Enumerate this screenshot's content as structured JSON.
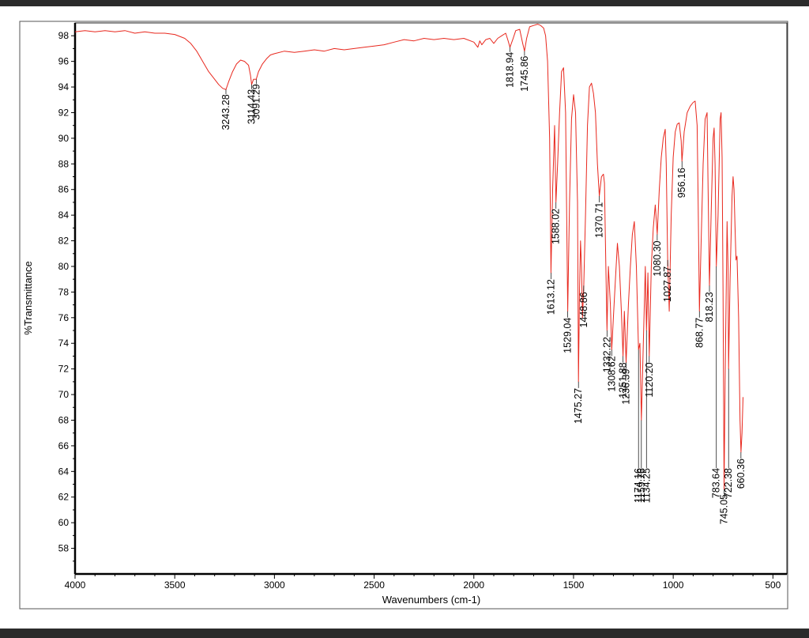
{
  "chart_data": {
    "type": "line",
    "title": "",
    "xlabel": "Wavenumbers (cm-1)",
    "ylabel": "%Transmittance",
    "xlim": [
      4000,
      430
    ],
    "ylim": [
      56,
      99
    ],
    "x_ticks": [
      "4000",
      "3500",
      "3000",
      "2500",
      "2000",
      "1500",
      "1000",
      "500"
    ],
    "y_ticks": [
      "98",
      "96",
      "94",
      "92",
      "90",
      "88",
      "86",
      "84",
      "82",
      "80",
      "78",
      "76",
      "74",
      "72",
      "70",
      "68",
      "66",
      "64",
      "62",
      "60",
      "58"
    ],
    "grid": false,
    "legend": "none",
    "line_color": "#e8281e",
    "series": [
      {
        "x": [
          4000,
          3950,
          3900,
          3850,
          3800,
          3750,
          3700,
          3650,
          3600,
          3550,
          3500,
          3450,
          3420,
          3390,
          3360,
          3330,
          3300,
          3280,
          3260,
          3243.28,
          3230,
          3210,
          3190,
          3170,
          3150,
          3130,
          3120,
          3114.43,
          3105,
          3091.29,
          3080,
          3060,
          3040,
          3020,
          3000,
          2950,
          2900,
          2850,
          2800,
          2750,
          2700,
          2650,
          2600,
          2550,
          2500,
          2450,
          2400,
          2350,
          2300,
          2250,
          2200,
          2150,
          2100,
          2050,
          2000,
          1980,
          1970,
          1960,
          1940,
          1920,
          1900,
          1880,
          1860,
          1840,
          1830,
          1818.94,
          1805,
          1790,
          1770,
          1755,
          1745.86,
          1735,
          1720,
          1700,
          1680,
          1665,
          1650,
          1640,
          1630,
          1620,
          1613.12,
          1605,
          1595,
          1588.02,
          1580,
          1570,
          1560,
          1550,
          1540,
          1535,
          1529.04,
          1520,
          1510,
          1500,
          1490,
          1480,
          1475.27,
          1470,
          1465,
          1460,
          1455,
          1448.86,
          1440,
          1430,
          1420,
          1410,
          1400,
          1390,
          1380,
          1370.71,
          1360,
          1350,
          1345,
          1340,
          1332.22,
          1325,
          1315,
          1308.62,
          1300,
          1290,
          1280,
          1270,
          1260,
          1251.88,
          1245,
          1236.39,
          1225,
          1215,
          1205,
          1195,
          1185,
          1174.16,
          1167,
          1159.76,
          1150,
          1140,
          1134.25,
          1127,
          1120.2,
          1110,
          1100,
          1090,
          1080.3,
          1070,
          1060,
          1050,
          1040,
          1035,
          1027.87,
          1020,
          1010,
          1000,
          990,
          980,
          970,
          960,
          956.16,
          945,
          930,
          915,
          900,
          890,
          880,
          875,
          868.77,
          860,
          850,
          840,
          830,
          825,
          818.23,
          810,
          800,
          795,
          790,
          783.64,
          775,
          765,
          760,
          755,
          750,
          745.05,
          740,
          730,
          725,
          722.38,
          715,
          705,
          700,
          695,
          690,
          685,
          680,
          672,
          665,
          660.36,
          655,
          650
        ],
        "values": [
          98.3,
          98.4,
          98.3,
          98.4,
          98.3,
          98.4,
          98.2,
          98.3,
          98.2,
          98.2,
          98.1,
          97.8,
          97.4,
          96.8,
          96.0,
          95.2,
          94.6,
          94.2,
          93.9,
          93.8,
          94.4,
          95.2,
          95.8,
          96.1,
          96.0,
          95.7,
          94.9,
          94.2,
          94.6,
          94.6,
          95.2,
          95.8,
          96.2,
          96.5,
          96.6,
          96.8,
          96.7,
          96.8,
          96.9,
          96.8,
          97.0,
          96.9,
          97.0,
          97.1,
          97.2,
          97.3,
          97.5,
          97.7,
          97.6,
          97.8,
          97.7,
          97.8,
          97.7,
          97.8,
          97.5,
          97.1,
          97.6,
          97.3,
          97.7,
          97.8,
          97.4,
          97.8,
          98.0,
          98.2,
          97.7,
          97.1,
          97.7,
          98.4,
          98.5,
          97.4,
          96.8,
          97.8,
          98.7,
          98.8,
          98.9,
          98.8,
          98.6,
          98.0,
          96.0,
          90.0,
          79.5,
          86.0,
          91.0,
          85.0,
          88.0,
          92.0,
          95.2,
          95.5,
          92.0,
          85.0,
          76.5,
          85.0,
          91.5,
          93.4,
          92.0,
          85.0,
          71.0,
          78.0,
          82.0,
          80.0,
          76.0,
          78.5,
          84.0,
          91.0,
          94.0,
          94.3,
          93.5,
          92.0,
          88.0,
          85.5,
          87.0,
          87.2,
          86.5,
          82.0,
          75.0,
          80.0,
          77.0,
          73.5,
          76.0,
          79.0,
          81.8,
          80.0,
          76.5,
          73.0,
          76.5,
          72.5,
          77.0,
          80.0,
          82.5,
          83.5,
          80.0,
          73.5,
          74.0,
          68.0,
          74.0,
          80.0,
          75.0,
          79.5,
          73.0,
          80.0,
          83.0,
          84.8,
          82.5,
          86.0,
          88.5,
          90.0,
          90.7,
          88.0,
          80.5,
          76.5,
          84.0,
          88.5,
          90.5,
          91.1,
          91.2,
          89.8,
          88.2,
          90.5,
          92.0,
          92.5,
          92.8,
          92.9,
          91.0,
          85.0,
          76.5,
          82.0,
          88.0,
          91.5,
          92.0,
          86.0,
          78.5,
          84.0,
          90.0,
          90.8,
          88.0,
          80.0,
          84.0,
          91.5,
          92.0,
          88.5,
          78.0,
          62.6,
          71.0,
          83.5,
          80.0,
          72.0,
          79.0,
          85.5,
          87.0,
          86.0,
          83.0,
          80.5,
          80.8,
          76.0,
          68.0,
          65.5,
          67.0,
          69.8
        ]
      }
    ],
    "peak_labels": [
      {
        "x": 3243.28,
        "text": "3243.28"
      },
      {
        "x": 3114.43,
        "text": "3114.43"
      },
      {
        "x": 3091.29,
        "text": "3091.29"
      },
      {
        "x": 1818.94,
        "text": "1818.94"
      },
      {
        "x": 1745.86,
        "text": "1745.86"
      },
      {
        "x": 1613.12,
        "text": "1613.12"
      },
      {
        "x": 1588.02,
        "text": "1588.02"
      },
      {
        "x": 1529.04,
        "text": "1529.04"
      },
      {
        "x": 1475.27,
        "text": "1475.27"
      },
      {
        "x": 1448.86,
        "text": "1448.86"
      },
      {
        "x": 1370.71,
        "text": "1370.71"
      },
      {
        "x": 1332.22,
        "text": "1332.22"
      },
      {
        "x": 1308.62,
        "text": "1308.62"
      },
      {
        "x": 1251.88,
        "text": "1251.88"
      },
      {
        "x": 1236.39,
        "text": "1236.39"
      },
      {
        "x": 1174.16,
        "text": "1174.16"
      },
      {
        "x": 1159.76,
        "text": "1159.76"
      },
      {
        "x": 1134.25,
        "text": "1134.25"
      },
      {
        "x": 1120.2,
        "text": "1120.20"
      },
      {
        "x": 1080.3,
        "text": "1080.30"
      },
      {
        "x": 1027.87,
        "text": "1027.87"
      },
      {
        "x": 956.16,
        "text": "956.16"
      },
      {
        "x": 868.77,
        "text": "868.77"
      },
      {
        "x": 818.23,
        "text": "818.23"
      },
      {
        "x": 783.64,
        "text": "783.64"
      },
      {
        "x": 745.05,
        "text": "745.05"
      },
      {
        "x": 722.38,
        "text": "722.38"
      },
      {
        "x": 660.36,
        "text": "660.36"
      }
    ]
  }
}
